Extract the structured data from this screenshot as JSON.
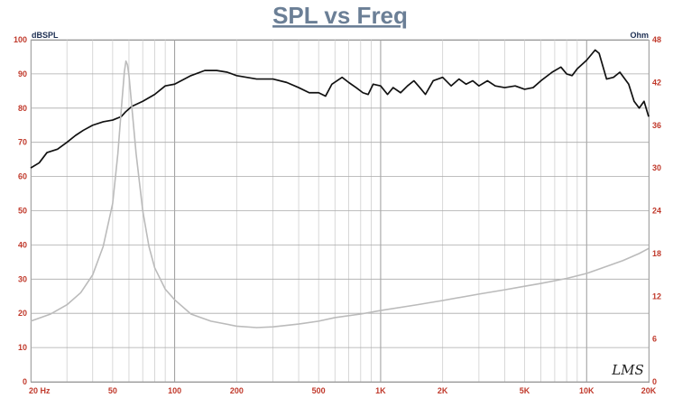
{
  "chart_data": {
    "type": "line",
    "title": "SPL vs Freq",
    "ylabel": "dBSPL",
    "y2label": "Ohm",
    "x_scale": "log",
    "xlim": [
      20,
      20000
    ],
    "ylim": [
      0,
      100
    ],
    "y2lim": [
      0,
      48
    ],
    "grid": true,
    "x_tick_labels": [
      "20 Hz",
      "50",
      "100",
      "200",
      "500",
      "1K",
      "2K",
      "5K",
      "10K",
      "20K"
    ],
    "x_tick_values": [
      20,
      50,
      100,
      200,
      500,
      1000,
      2000,
      5000,
      10000,
      20000
    ],
    "y_ticks": [
      0,
      10,
      20,
      30,
      40,
      50,
      60,
      70,
      80,
      90,
      100
    ],
    "y2_ticks": [
      0,
      6,
      12,
      18,
      24,
      30,
      36,
      42,
      48
    ],
    "watermark": "LMS",
    "series": [
      {
        "axis": "left",
        "color": "#111111",
        "points": [
          [
            20,
            62.5
          ],
          [
            22,
            64
          ],
          [
            24,
            67
          ],
          [
            27,
            68
          ],
          [
            30,
            70
          ],
          [
            33,
            72
          ],
          [
            36,
            73.5
          ],
          [
            40,
            75
          ],
          [
            45,
            76
          ],
          [
            50,
            76.5
          ],
          [
            55,
            77.5
          ],
          [
            58,
            79
          ],
          [
            62,
            80.5
          ],
          [
            70,
            82
          ],
          [
            80,
            84
          ],
          [
            90,
            86.5
          ],
          [
            100,
            87
          ],
          [
            120,
            89.5
          ],
          [
            140,
            91
          ],
          [
            160,
            91
          ],
          [
            180,
            90.5
          ],
          [
            200,
            89.5
          ],
          [
            250,
            88.5
          ],
          [
            300,
            88.5
          ],
          [
            350,
            87.5
          ],
          [
            400,
            86
          ],
          [
            450,
            84.5
          ],
          [
            500,
            84.5
          ],
          [
            540,
            83.5
          ],
          [
            580,
            87
          ],
          [
            650,
            89
          ],
          [
            700,
            87.5
          ],
          [
            760,
            86
          ],
          [
            820,
            84.5
          ],
          [
            870,
            84
          ],
          [
            920,
            87
          ],
          [
            1000,
            86.5
          ],
          [
            1080,
            84
          ],
          [
            1150,
            86
          ],
          [
            1250,
            84.5
          ],
          [
            1350,
            86.5
          ],
          [
            1450,
            88
          ],
          [
            1550,
            86
          ],
          [
            1650,
            84
          ],
          [
            1800,
            88
          ],
          [
            2000,
            89
          ],
          [
            2200,
            86.5
          ],
          [
            2400,
            88.5
          ],
          [
            2600,
            87
          ],
          [
            2800,
            88
          ],
          [
            3000,
            86.5
          ],
          [
            3300,
            88
          ],
          [
            3600,
            86.5
          ],
          [
            4000,
            86
          ],
          [
            4500,
            86.5
          ],
          [
            5000,
            85.5
          ],
          [
            5500,
            86
          ],
          [
            6000,
            88
          ],
          [
            6800,
            90.5
          ],
          [
            7500,
            92
          ],
          [
            8000,
            90
          ],
          [
            8500,
            89.5
          ],
          [
            9000,
            91.5
          ],
          [
            10000,
            94
          ],
          [
            11000,
            97
          ],
          [
            11500,
            96
          ],
          [
            12500,
            88.5
          ],
          [
            13500,
            89
          ],
          [
            14500,
            90.5
          ],
          [
            16000,
            87
          ],
          [
            17000,
            82
          ],
          [
            18000,
            80
          ],
          [
            19000,
            82
          ],
          [
            20000,
            77.5
          ]
        ]
      },
      {
        "axis": "right",
        "color": "#bbbbbb",
        "points": [
          [
            20,
            8.5
          ],
          [
            25,
            9.5
          ],
          [
            30,
            10.8
          ],
          [
            35,
            12.5
          ],
          [
            40,
            15
          ],
          [
            45,
            19
          ],
          [
            50,
            25
          ],
          [
            53,
            32
          ],
          [
            55,
            38
          ],
          [
            57,
            43.5
          ],
          [
            58,
            45
          ],
          [
            59,
            44.5
          ],
          [
            60,
            43
          ],
          [
            62,
            38.5
          ],
          [
            65,
            32
          ],
          [
            70,
            24
          ],
          [
            75,
            19
          ],
          [
            80,
            16
          ],
          [
            90,
            13
          ],
          [
            100,
            11.5
          ],
          [
            120,
            9.5
          ],
          [
            150,
            8.5
          ],
          [
            200,
            7.8
          ],
          [
            250,
            7.6
          ],
          [
            300,
            7.7
          ],
          [
            400,
            8.1
          ],
          [
            500,
            8.5
          ],
          [
            600,
            9
          ],
          [
            800,
            9.5
          ],
          [
            1000,
            10
          ],
          [
            1500,
            10.8
          ],
          [
            2000,
            11.4
          ],
          [
            3000,
            12.3
          ],
          [
            4000,
            12.9
          ],
          [
            5000,
            13.4
          ],
          [
            6000,
            13.8
          ],
          [
            8000,
            14.5
          ],
          [
            10000,
            15.2
          ],
          [
            12000,
            16
          ],
          [
            15000,
            17
          ],
          [
            18000,
            18
          ],
          [
            20000,
            18.7
          ]
        ]
      }
    ]
  }
}
